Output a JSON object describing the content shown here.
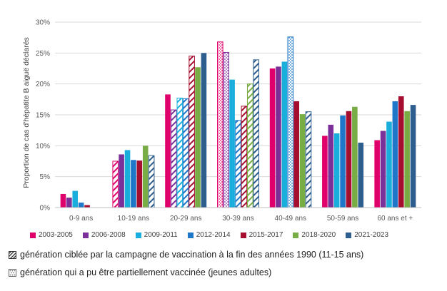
{
  "chart_data": {
    "type": "bar",
    "ylabel": "Proportion de cas d'hépatite B aiguë déclarés",
    "ylim": [
      0,
      30
    ],
    "yticks": [
      "0%",
      "5%",
      "10%",
      "15%",
      "20%",
      "25%",
      "30%"
    ],
    "grid": true,
    "legend_position": "bottom",
    "categories": [
      "0-9 ans",
      "10-19 ans",
      "20-29 ans",
      "30-39 ans",
      "40-49 ans",
      "50-59 ans",
      "60 ans et +"
    ],
    "series": [
      {
        "name": "2003-2005",
        "color": "#e0006c",
        "values": [
          2.2,
          7.5,
          18.3,
          26.8,
          22.5,
          11.6,
          10.9
        ]
      },
      {
        "name": "2006-2008",
        "color": "#7b2f99",
        "values": [
          1.6,
          8.6,
          15.8,
          25.1,
          22.8,
          13.4,
          12.4
        ]
      },
      {
        "name": "2009-2011",
        "color": "#1aaedc",
        "values": [
          2.7,
          9.3,
          17.7,
          20.7,
          23.6,
          12.0,
          13.9
        ]
      },
      {
        "name": "2012-2014",
        "color": "#1f77c9",
        "values": [
          0.8,
          7.7,
          17.6,
          14.1,
          27.6,
          14.9,
          17.2
        ]
      },
      {
        "name": "2015-2017",
        "color": "#a50e2e",
        "values": [
          0.4,
          7.6,
          24.5,
          16.4,
          17.2,
          15.6,
          18.0
        ]
      },
      {
        "name": "2018-2020",
        "color": "#78ad45",
        "values": [
          0,
          10.0,
          22.7,
          20.0,
          15.1,
          16.3,
          15.6
        ]
      },
      {
        "name": "2021-2023",
        "color": "#2e5e8e",
        "values": [
          0,
          8.4,
          25.0,
          23.9,
          15.5,
          10.5,
          16.6
        ]
      }
    ],
    "pattern_legend": [
      {
        "pattern": "diagonal",
        "label": "génération ciblée par la campagne de vaccination à la fin des années 1990 (11-15 ans)"
      },
      {
        "pattern": "dotted",
        "label": "génération qui a pu être partiellement vaccinée (jeunes adultes)"
      }
    ]
  }
}
